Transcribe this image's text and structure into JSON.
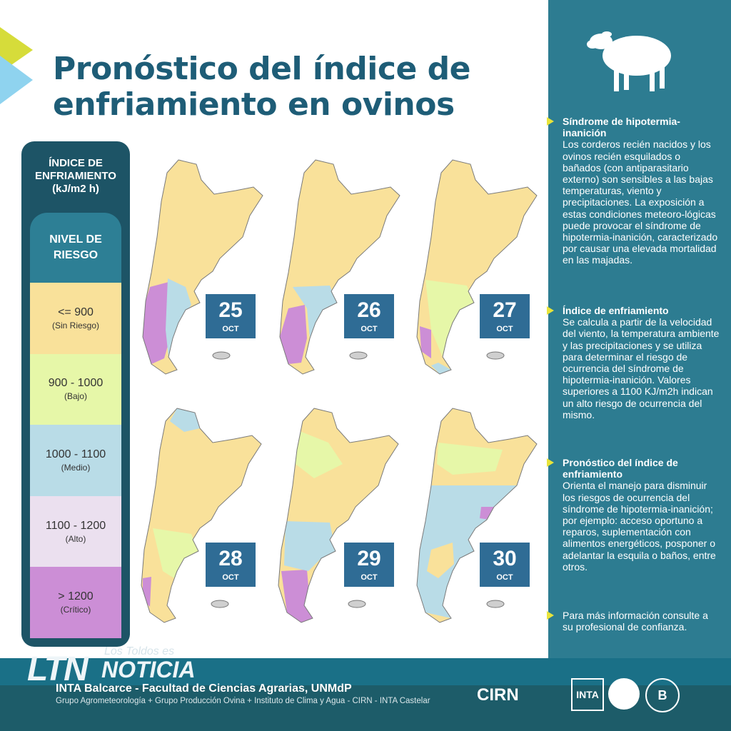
{
  "title": "Pronóstico del índice de enfriamiento en ovinos",
  "legend": {
    "heading": "ÍNDICE DE ENFRIAMIENTO (kJ/m2 h)",
    "level_title": "NIVEL DE RIESGO",
    "levels": [
      {
        "range": "<= 900",
        "class": "(Sin Riesgo)",
        "color": "#f9e19a"
      },
      {
        "range": "900 - 1000",
        "class": "(Bajo)",
        "color": "#e6f7a8"
      },
      {
        "range": "1000 - 1100",
        "class": "(Medio)",
        "color": "#b9dce7"
      },
      {
        "range": "1100 - 1200",
        "class": "(Alto)",
        "color": "#ebe0ef"
      },
      {
        "range": "> 1200",
        "class": "(Crítico)",
        "color": "#cc8ed6"
      }
    ]
  },
  "maps": [
    {
      "day": "25",
      "month": "OCT"
    },
    {
      "day": "26",
      "month": "OCT"
    },
    {
      "day": "27",
      "month": "OCT"
    },
    {
      "day": "28",
      "month": "OCT"
    },
    {
      "day": "29",
      "month": "OCT"
    },
    {
      "day": "30",
      "month": "OCT"
    }
  ],
  "panel": {
    "icon": "sheep-icon",
    "sections": [
      {
        "heading": "Síndrome de hipotermia-inanición",
        "body": "Los corderos recién nacidos y los ovinos recién esquilados o bañados (con antiparasitario externo) son sensibles a las bajas temperaturas, viento y precipitaciones. La exposición a estas condiciones meteoro-lógicas puede provocar el síndrome de hipotermia-inanición, caracterizado por causar una elevada mortalidad en las majadas."
      },
      {
        "heading": "Índice de enfriamiento",
        "body": "Se calcula a partir de la velocidad del viento, la temperatura ambiente y las precipitaciones y se utiliza para determinar el riesgo de ocurrencia del síndrome de hipotermia-inanición. Valores superiores a 1100 KJ/m2h indican un alto riesgo de ocurrencia del mismo."
      },
      {
        "heading": "Pronóstico del índice de enfriamiento",
        "body": "Orienta el manejo para disminuir los riesgos de ocurrencia del síndrome de hipotermia-inanición; por ejemplo: acceso oportuno a reparos, suplementación con alimentos energéticos, posponer o adelantar la esquila o baños, entre otros."
      },
      {
        "heading": "",
        "body": "Para más información consulte a su profesional de confianza."
      }
    ]
  },
  "footer": {
    "watermark_top": "Los Toldos es",
    "watermark_ltn": "LTN",
    "watermark_noticia": "NOTICIA",
    "institution": "INTA Balcarce - Facultad de Ciencias Agrarias, UNMdP",
    "groups": "Grupo Agrometeorología + Grupo Producción Ovina + Instituto de Clima y Agua - CIRN - INTA Castelar",
    "logo_cirn": "CIRN",
    "logo_inta": "INTA",
    "logo_b": "B"
  }
}
